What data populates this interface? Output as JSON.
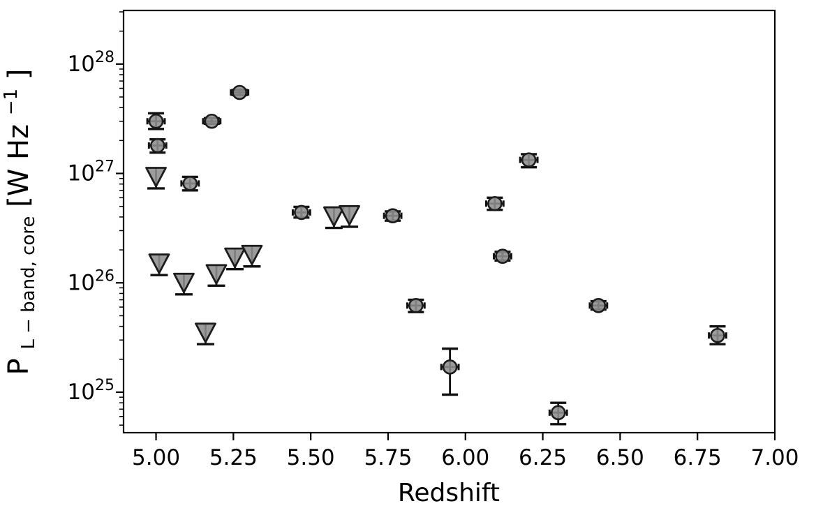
{
  "figure": {
    "background": "#ffffff",
    "description": "Scatter plot of L-band core radio power versus redshift with detections (grey circles with error bars) and upper limits (grey downward triangles)"
  },
  "chart_data": {
    "type": "scatter",
    "title": "",
    "xlabel": "Redshift",
    "ylabel_parts": {
      "main": "P",
      "sub": "L − band, core",
      "mid": " [W Hz",
      "sup": "−1",
      "end": "]"
    },
    "axes": {
      "x_scale": "linear",
      "y_scale": "log",
      "xlim": [
        4.895,
        7.0
      ],
      "ylim_log10": [
        24.63,
        28.49
      ],
      "grid": false,
      "legend": null
    },
    "x_ticks": [
      {
        "value": 5.0,
        "label": "5.00"
      },
      {
        "value": 5.25,
        "label": "5.25"
      },
      {
        "value": 5.5,
        "label": "5.50"
      },
      {
        "value": 5.75,
        "label": "5.75"
      },
      {
        "value": 6.0,
        "label": "6.00"
      },
      {
        "value": 6.25,
        "label": "6.25"
      },
      {
        "value": 6.5,
        "label": "6.50"
      },
      {
        "value": 6.75,
        "label": "6.75"
      },
      {
        "value": 7.0,
        "label": "7.00"
      }
    ],
    "y_ticks": [
      {
        "log10": 25,
        "base": "10",
        "exp": "25"
      },
      {
        "log10": 26,
        "base": "10",
        "exp": "26"
      },
      {
        "log10": 27,
        "base": "10",
        "exp": "27"
      },
      {
        "log10": 28,
        "base": "10",
        "exp": "28"
      }
    ],
    "style": {
      "marker_fill": "#8e8e8e",
      "marker_edge": "#1c1c1c",
      "errorbar_color": "#111111",
      "axis_color": "#000000"
    },
    "series": [
      {
        "name": "detections",
        "marker": "circle",
        "z_err": 0.028,
        "points": [
          {
            "z": 5.0,
            "p": 3e+27,
            "p_lo": 2.55e+27,
            "p_hi": 3.55e+27
          },
          {
            "z": 5.005,
            "p": 1.8e+27,
            "p_lo": 1.55e+27,
            "p_hi": 2.05e+27
          },
          {
            "z": 5.11,
            "p": 8.1e+26,
            "p_lo": 7e+26,
            "p_hi": 9.3e+26
          },
          {
            "z": 5.18,
            "p": 3e+27,
            "p_lo": 2.85e+27,
            "p_hi": 3.2e+27
          },
          {
            "z": 5.27,
            "p": 5.5e+27,
            "p_lo": 5.2e+27,
            "p_hi": 5.8e+27
          },
          {
            "z": 5.47,
            "p": 4.4e+26,
            "p_lo": 3.95e+26,
            "p_hi": 4.95e+26
          },
          {
            "z": 5.765,
            "p": 4.1e+26,
            "p_lo": 3.7e+26,
            "p_hi": 4.5e+26
          },
          {
            "z": 5.84,
            "p": 6.2e+25,
            "p_lo": 5.4e+25,
            "p_hi": 7e+25
          },
          {
            "z": 5.95,
            "p": 1.7e+25,
            "p_lo": 9.5e+24,
            "p_hi": 2.5e+25
          },
          {
            "z": 6.095,
            "p": 5.3e+26,
            "p_lo": 4.65e+26,
            "p_hi": 6e+26
          },
          {
            "z": 6.12,
            "p": 1.75e+26,
            "p_lo": 1.6e+26,
            "p_hi": 1.92e+26
          },
          {
            "z": 6.205,
            "p": 1.33e+27,
            "p_lo": 1.14e+27,
            "p_hi": 1.5e+27
          },
          {
            "z": 6.3,
            "p": 6.5e+24,
            "p_lo": 5.1e+24,
            "p_hi": 8e+24
          },
          {
            "z": 6.43,
            "p": 6.2e+25,
            "p_lo": 5.7e+25,
            "p_hi": 6.8e+25
          },
          {
            "z": 6.815,
            "p": 3.3e+25,
            "p_lo": 2.75e+25,
            "p_hi": 4e+25
          }
        ]
      },
      {
        "name": "upper-limits",
        "marker": "triangle-down",
        "points": [
          {
            "z": 5.0,
            "p": 9.3e+26
          },
          {
            "z": 5.01,
            "p": 1.5e+26
          },
          {
            "z": 5.09,
            "p": 1e+26
          },
          {
            "z": 5.16,
            "p": 3.5e+25
          },
          {
            "z": 5.195,
            "p": 1.2e+26
          },
          {
            "z": 5.255,
            "p": 1.7e+26
          },
          {
            "z": 5.31,
            "p": 1.8e+26
          },
          {
            "z": 5.575,
            "p": 4.05e+26
          },
          {
            "z": 5.625,
            "p": 4.15e+26
          }
        ]
      }
    ]
  }
}
